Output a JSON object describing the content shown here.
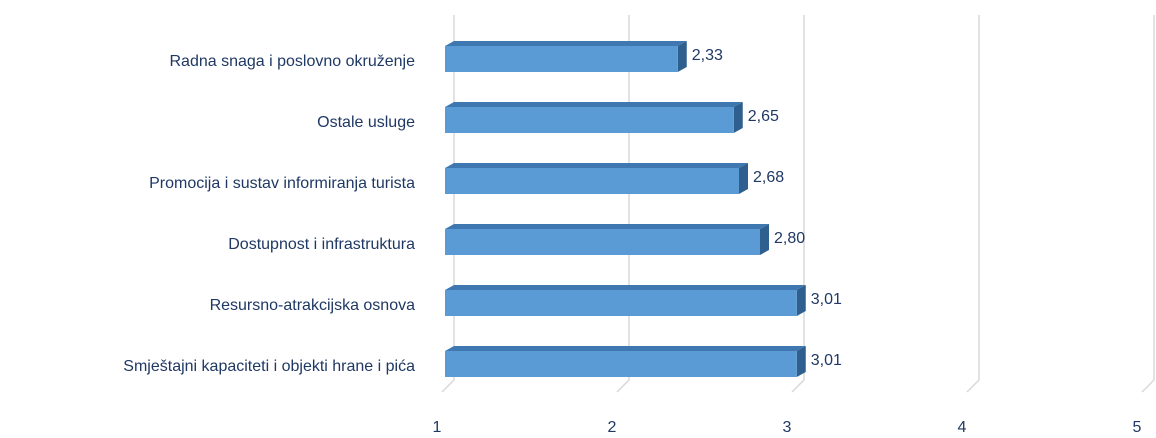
{
  "chart_data": {
    "type": "bar",
    "orientation": "horizontal",
    "categories": [
      "Radna snaga i poslovno okruženje",
      "Ostale usluge",
      "Promocija i sustav informiranja turista",
      "Dostupnost i infrastruktura",
      "Resursno-atrakcijska osnova",
      "Smještajni kapaciteti i objekti hrane i pića"
    ],
    "values": [
      2.33,
      2.65,
      2.68,
      2.8,
      3.01,
      3.01
    ],
    "value_labels": [
      "2,33",
      "2,65",
      "2,68",
      "2,80",
      "3,01",
      "3,01"
    ],
    "color": "#5b9bd5",
    "xlim": [
      1,
      5
    ],
    "xticks": [
      1,
      2,
      3,
      4,
      5
    ],
    "grid": true
  }
}
